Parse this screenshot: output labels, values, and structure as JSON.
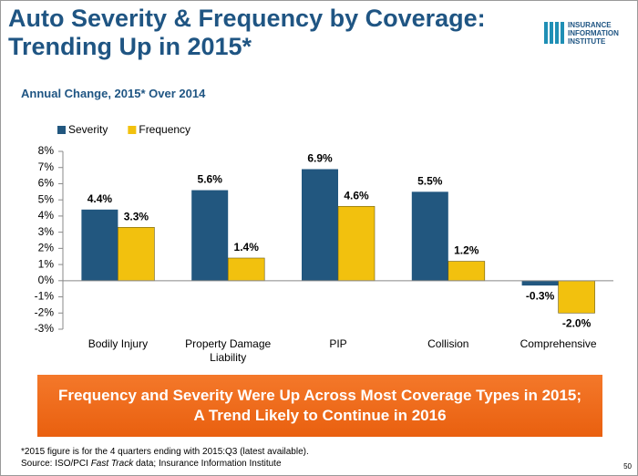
{
  "chart_data": {
    "type": "bar",
    "title": "Auto Severity & Frequency by Coverage: Trending Up in 2015*",
    "subtitle": "Annual Change, 2015* Over 2014",
    "categories": [
      "Bodily Injury",
      "Property Damage Liability",
      "PIP",
      "Collision",
      "Comprehensive"
    ],
    "series": [
      {
        "name": "Severity",
        "color": "#22577f",
        "values": [
          4.4,
          5.6,
          6.9,
          5.5,
          -0.3
        ],
        "value_labels": [
          "4.4%",
          "5.6%",
          "6.9%",
          "5.5%",
          "-0.3%"
        ]
      },
      {
        "name": "Frequency",
        "color": "#f2c10e",
        "values": [
          3.3,
          1.4,
          4.6,
          1.2,
          -2.0
        ],
        "value_labels": [
          "3.3%",
          "1.4%",
          "4.6%",
          "1.2%",
          "-2.0%"
        ]
      }
    ],
    "ylim": [
      -3,
      8
    ],
    "yticks": [
      {
        "value": -3,
        "label": "-3%"
      },
      {
        "value": -2,
        "label": "-2%"
      },
      {
        "value": -1,
        "label": "-1%"
      },
      {
        "value": 0,
        "label": "0%"
      },
      {
        "value": 1,
        "label": "1%"
      },
      {
        "value": 2,
        "label": "2%"
      },
      {
        "value": 3,
        "label": "3%"
      },
      {
        "value": 4,
        "label": "4%"
      },
      {
        "value": 5,
        "label": "5%"
      },
      {
        "value": 6,
        "label": "6%"
      },
      {
        "value": 7,
        "label": "7%"
      },
      {
        "value": 8,
        "label": "8%"
      }
    ],
    "grid": false,
    "legend": "top-left"
  },
  "logo": [
    "INSURANCE",
    "INFORMATION",
    "INSTITUTE"
  ],
  "banner": "Frequency and Severity Were Up Across Most Coverage Types in 2015; A Trend Likely to Continue in 2016",
  "footnote": "*2015 figure is for the 4 quarters ending with 2015:Q3 (latest available).",
  "source": [
    "Source: ISO/PCI ",
    "Fast Track",
    " data; Insurance Information Institute"
  ],
  "page_number": "50"
}
